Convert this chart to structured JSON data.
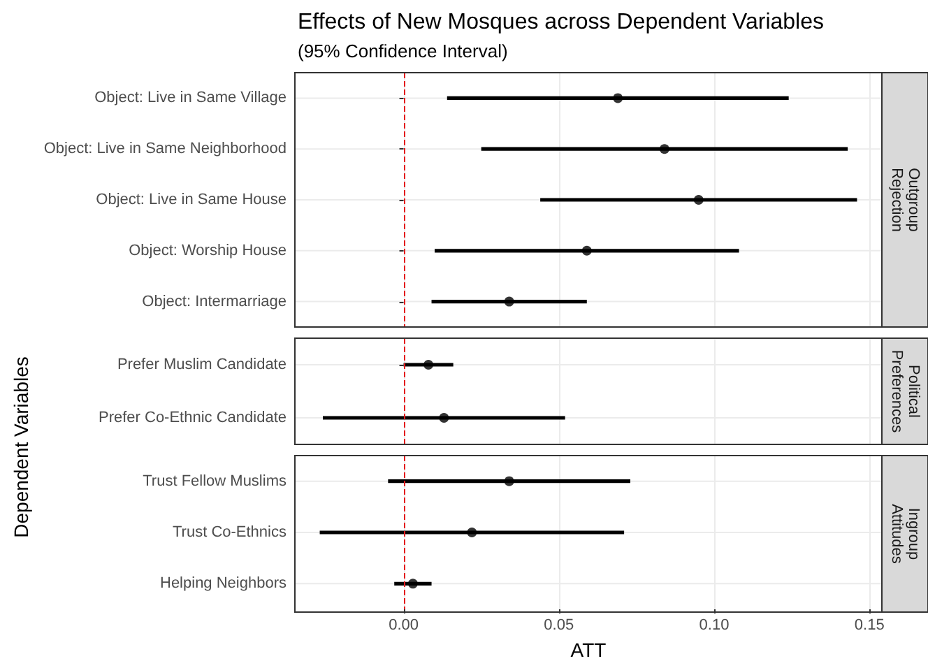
{
  "chart_data": [
    {
      "type": "scatter",
      "orientation": "horizontal",
      "title": "Effects of New Mosques across Dependent Variables",
      "subtitle": "(95% Confidence Interval)",
      "annotations": [
        "Outgroup Rejection"
      ],
      "categories": [
        "Object: Live in Same Village",
        "Object: Live in Same Neighborhood",
        "Object: Live in Same House",
        "Object: Worship House",
        "Object: Intermarriage"
      ],
      "values": [
        0.069,
        0.084,
        0.095,
        0.059,
        0.034
      ],
      "errors": [
        [
          0.014,
          0.124
        ],
        [
          0.025,
          0.143
        ],
        [
          0.044,
          0.146
        ],
        [
          0.01,
          0.108
        ],
        [
          0.009,
          0.059
        ]
      ],
      "color": "#000000",
      "marker": "circle",
      "xlim": [
        -0.035,
        0.154
      ],
      "xticks": [
        0,
        0.05,
        0.1,
        0.15
      ],
      "ref_lines": [
        {
          "axis": "x",
          "value": 0,
          "label": null,
          "color": "#e41a1c",
          "line_style": "dashed"
        }
      ],
      "grid": true,
      "tick_labels": "y"
    },
    {
      "type": "scatter",
      "orientation": "horizontal",
      "ylabel": "Dependent Variables",
      "annotations": [
        "Political Preferences"
      ],
      "categories": [
        "Prefer Muslim Candidate",
        "Prefer Co-Ethnic Candidate"
      ],
      "values": [
        0.008,
        0.013
      ],
      "errors": [
        [
          0.0,
          0.016
        ],
        [
          -0.026,
          0.052
        ]
      ],
      "color": "#000000",
      "marker": "circle",
      "xlim": [
        -0.035,
        0.154
      ],
      "xticks": [
        0,
        0.05,
        0.1,
        0.15
      ],
      "ref_lines": [
        {
          "axis": "x",
          "value": 0,
          "label": null,
          "color": "#e41a1c",
          "line_style": "dashed"
        }
      ],
      "grid": true,
      "tick_labels": "y"
    },
    {
      "type": "scatter",
      "orientation": "horizontal",
      "xlabel": "ATT",
      "annotations": [
        "Ingroup Attitudes"
      ],
      "categories": [
        "Trust Fellow Muslims",
        "Trust Co-Ethnics",
        "Helping Neighbors"
      ],
      "values": [
        0.034,
        0.022,
        0.003
      ],
      "errors": [
        [
          -0.005,
          0.073
        ],
        [
          -0.027,
          0.071
        ],
        [
          -0.003,
          0.009
        ]
      ],
      "color": "#000000",
      "marker": "circle",
      "xlim": [
        -0.035,
        0.154
      ],
      "xticks": [
        {
          "value": 0,
          "label": "0.00"
        },
        {
          "value": 0.05,
          "label": "0.05"
        },
        {
          "value": 0.1,
          "label": "0.10"
        },
        {
          "value": 0.15,
          "label": "0.15"
        }
      ],
      "ref_lines": [
        {
          "axis": "x",
          "value": 0,
          "label": null,
          "color": "#e41a1c",
          "line_style": "dashed"
        }
      ],
      "grid": true
    }
  ]
}
